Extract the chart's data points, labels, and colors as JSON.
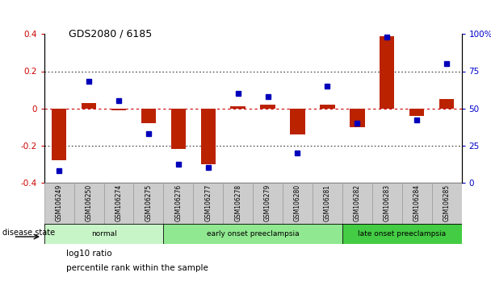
{
  "title": "GDS2080 / 6185",
  "samples": [
    "GSM106249",
    "GSM106250",
    "GSM106274",
    "GSM106275",
    "GSM106276",
    "GSM106277",
    "GSM106278",
    "GSM106279",
    "GSM106280",
    "GSM106281",
    "GSM106282",
    "GSM106283",
    "GSM106284",
    "GSM106285"
  ],
  "log10_ratio": [
    -0.28,
    0.03,
    -0.01,
    -0.08,
    -0.22,
    -0.3,
    0.01,
    0.02,
    -0.14,
    0.02,
    -0.1,
    0.39,
    -0.04,
    0.05
  ],
  "percentile_rank": [
    8,
    68,
    55,
    33,
    12,
    10,
    60,
    58,
    20,
    65,
    40,
    98,
    42,
    80
  ],
  "groups": [
    {
      "label": "normal",
      "start": 0,
      "end": 3,
      "color": "#c8f5c8"
    },
    {
      "label": "early onset preeclampsia",
      "start": 4,
      "end": 9,
      "color": "#90e890"
    },
    {
      "label": "late onset preeclampsia",
      "start": 10,
      "end": 13,
      "color": "#44cc44"
    }
  ],
  "bar_color": "#bb2200",
  "dot_color": "#0000bb",
  "ylim_left": [
    -0.4,
    0.4
  ],
  "ylim_right": [
    0,
    100
  ],
  "yticks_left": [
    -0.4,
    -0.2,
    0.0,
    0.2,
    0.4
  ],
  "yticks_right": [
    0,
    25,
    50,
    75,
    100
  ],
  "zero_line_color": "#cc0000",
  "background_color": "#ffffff",
  "tick_label_color_left": "#cc0000",
  "tick_label_color_right": "#0000cc",
  "legend_red_label": "log10 ratio",
  "legend_blue_label": "percentile rank within the sample",
  "disease_state_label": "disease state",
  "sample_box_color": "#cccccc",
  "sample_box_edge": "#999999"
}
